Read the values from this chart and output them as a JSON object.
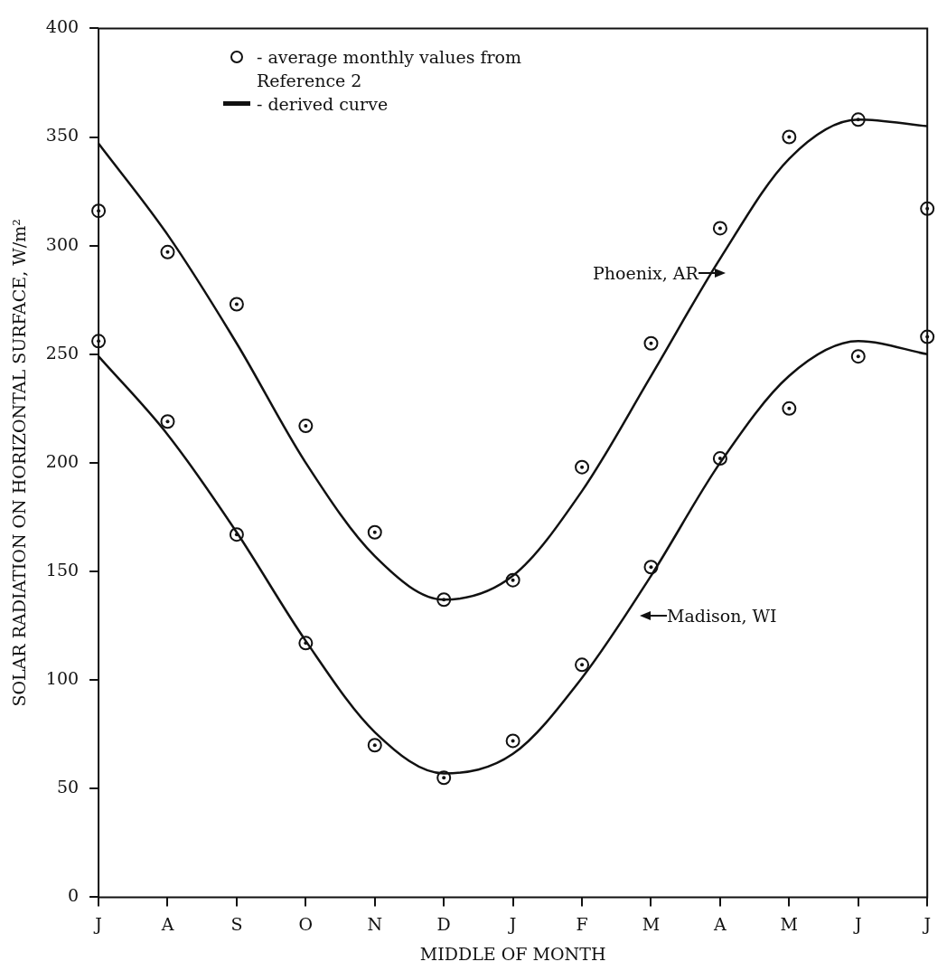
{
  "chart_data": {
    "type": "line",
    "xlabel": "MIDDLE OF MONTH",
    "ylabel": "SOLAR RADIATION ON HORIZONTAL SURFACE, W/m²",
    "categories": [
      "J",
      "A",
      "S",
      "O",
      "N",
      "D",
      "J",
      "F",
      "M",
      "A",
      "M",
      "J",
      "J"
    ],
    "series": [
      {
        "name": "Phoenix, AR",
        "type": "line",
        "marker": "none",
        "color": "#111111",
        "values": [
          347,
          305,
          255,
          200,
          157,
          137,
          148,
          187,
          240,
          294,
          340,
          358,
          355
        ]
      },
      {
        "name": "Madison, WI",
        "type": "line",
        "marker": "none",
        "color": "#111111",
        "values": [
          249,
          213,
          168,
          118,
          76,
          57,
          66,
          101,
          148,
          200,
          240,
          256,
          250
        ]
      },
      {
        "type": "scatter",
        "marker": "circle",
        "color": "#111111",
        "values": [
          316,
          297,
          273,
          217,
          168,
          137,
          146,
          198,
          255,
          308,
          350,
          358,
          317
        ]
      },
      {
        "type": "scatter",
        "marker": "circle",
        "color": "#111111",
        "values": [
          256,
          219,
          167,
          117,
          70,
          55,
          72,
          107,
          152,
          202,
          225,
          249,
          258
        ]
      }
    ],
    "ylim": [
      0,
      400
    ],
    "yticks": [
      0,
      50,
      100,
      150,
      200,
      250,
      300,
      350,
      400
    ],
    "grid": false,
    "line_style": "solid",
    "annotations": [
      "- average monthly values from Reference 2",
      "- derived curve"
    ]
  }
}
